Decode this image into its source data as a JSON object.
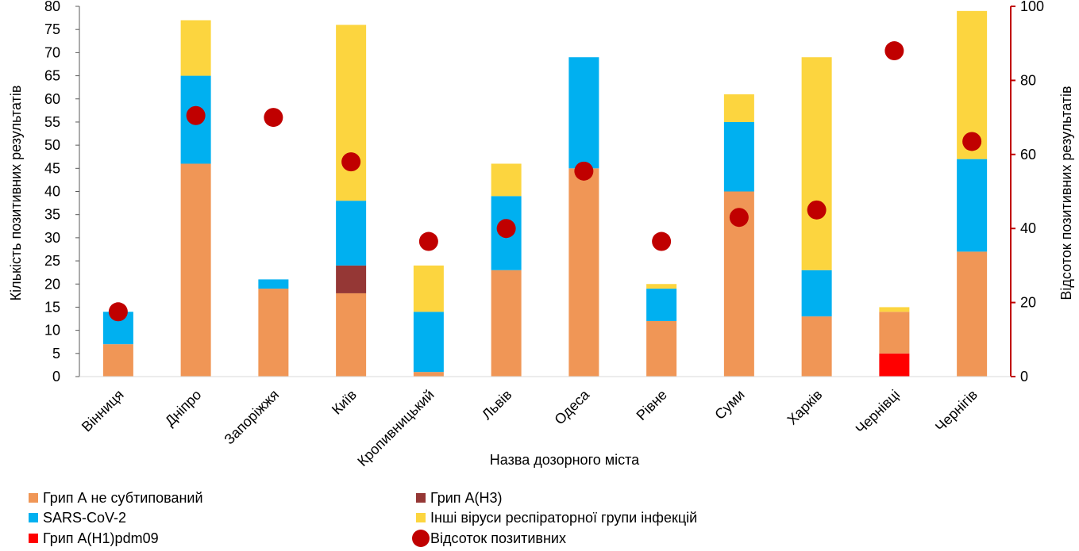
{
  "chart_data": {
    "type": "bar",
    "stacked": true,
    "categories": [
      "Вінниця",
      "Дніпро",
      "Запоріжжя",
      "Київ",
      "Кропивницький",
      "Львів",
      "Одеса",
      "Рівне",
      "Суми",
      "Харків",
      "Чернівці",
      "Чернігів"
    ],
    "xlabel": "Назва  дозорного міста",
    "ylabel": "Кількість позитивних результатів",
    "y2label": "Відсоток позитивних результатів",
    "ylim": [
      0,
      80
    ],
    "y2lim": [
      0,
      100
    ],
    "yticks": [
      0,
      5,
      10,
      15,
      20,
      25,
      30,
      35,
      40,
      45,
      50,
      55,
      60,
      65,
      70,
      75,
      80
    ],
    "y2ticks": [
      0,
      20,
      40,
      60,
      80,
      100
    ],
    "grid": false,
    "legend_position": "bottom",
    "series": [
      {
        "name": "Грип А(H1)pdm09",
        "color": "#ff0000",
        "axis": "left",
        "values": [
          0,
          0,
          0,
          0,
          0,
          0,
          0,
          0,
          0,
          0,
          5,
          0
        ]
      },
      {
        "name": "Грип А не субтипований",
        "color": "#f09656",
        "axis": "left",
        "values": [
          7,
          46,
          19,
          18,
          1,
          23,
          45,
          12,
          40,
          13,
          9,
          27
        ]
      },
      {
        "name": "Грип А(H3)",
        "color": "#953735",
        "axis": "left",
        "values": [
          0,
          0,
          0,
          6,
          0,
          0,
          0,
          0,
          0,
          0,
          0,
          0
        ]
      },
      {
        "name": "SARS-CoV-2",
        "color": "#00b0f0",
        "axis": "left",
        "values": [
          7,
          19,
          2,
          14,
          13,
          16,
          24,
          7,
          15,
          10,
          0,
          20
        ]
      },
      {
        "name": "Інші віруси респіраторної групи інфекцій",
        "color": "#fcd53f",
        "axis": "left",
        "values": [
          0,
          12,
          0,
          38,
          10,
          7,
          0,
          1,
          6,
          46,
          1,
          32
        ]
      },
      {
        "name": "Відсоток позитивних",
        "color": "#c00000",
        "axis": "right",
        "marker": "circle",
        "values": [
          17.5,
          70.5,
          70,
          58,
          36.5,
          40,
          55.5,
          36.5,
          43,
          45,
          88,
          63.5
        ]
      }
    ]
  },
  "legend": [
    {
      "label": "Грип А не субтипований",
      "color": "#f09656",
      "shape": "square"
    },
    {
      "label": "Грип А(H3)",
      "color": "#953735",
      "shape": "square"
    },
    {
      "label": "SARS-CoV-2",
      "color": "#00b0f0",
      "shape": "square"
    },
    {
      "label": "Інші віруси респіраторної групи інфекцій",
      "color": "#fcd53f",
      "shape": "square"
    },
    {
      "label": "Грип А(H1)pdm09",
      "color": "#ff0000",
      "shape": "square"
    },
    {
      "label": "Відсоток позитивних",
      "color": "#c00000",
      "shape": "circle"
    }
  ],
  "colors": {
    "left_axis": "#595959",
    "right_axis": "#c00000",
    "text": "#000000"
  }
}
